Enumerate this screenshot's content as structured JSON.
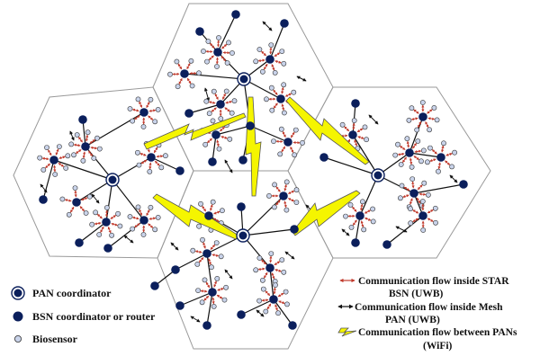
{
  "legend": {
    "pan_coordinator": "PAN coordinator",
    "bsn_coordinator": "BSN coordinator or router",
    "biosensor": "Biosensor"
  },
  "flows": {
    "star_line1": "Communication flow inside STAR",
    "star_line2": "BSN (UWB)",
    "mesh_line1": "Communication flow inside Mesh",
    "mesh_line2": "PAN (UWB)",
    "wifi_line1": "Communication flow between PANs",
    "wifi_line2": "(WiFi)"
  },
  "colors": {
    "node_navy": "#0b1f5c",
    "biosensor_fill": "#c9d3ea",
    "star_arrow": "#c0392b",
    "mesh_arrow": "#111111",
    "wifi_bolt": "#f5f500",
    "wifi_outline": "#555555",
    "hex_border": "#9a9a9a"
  }
}
